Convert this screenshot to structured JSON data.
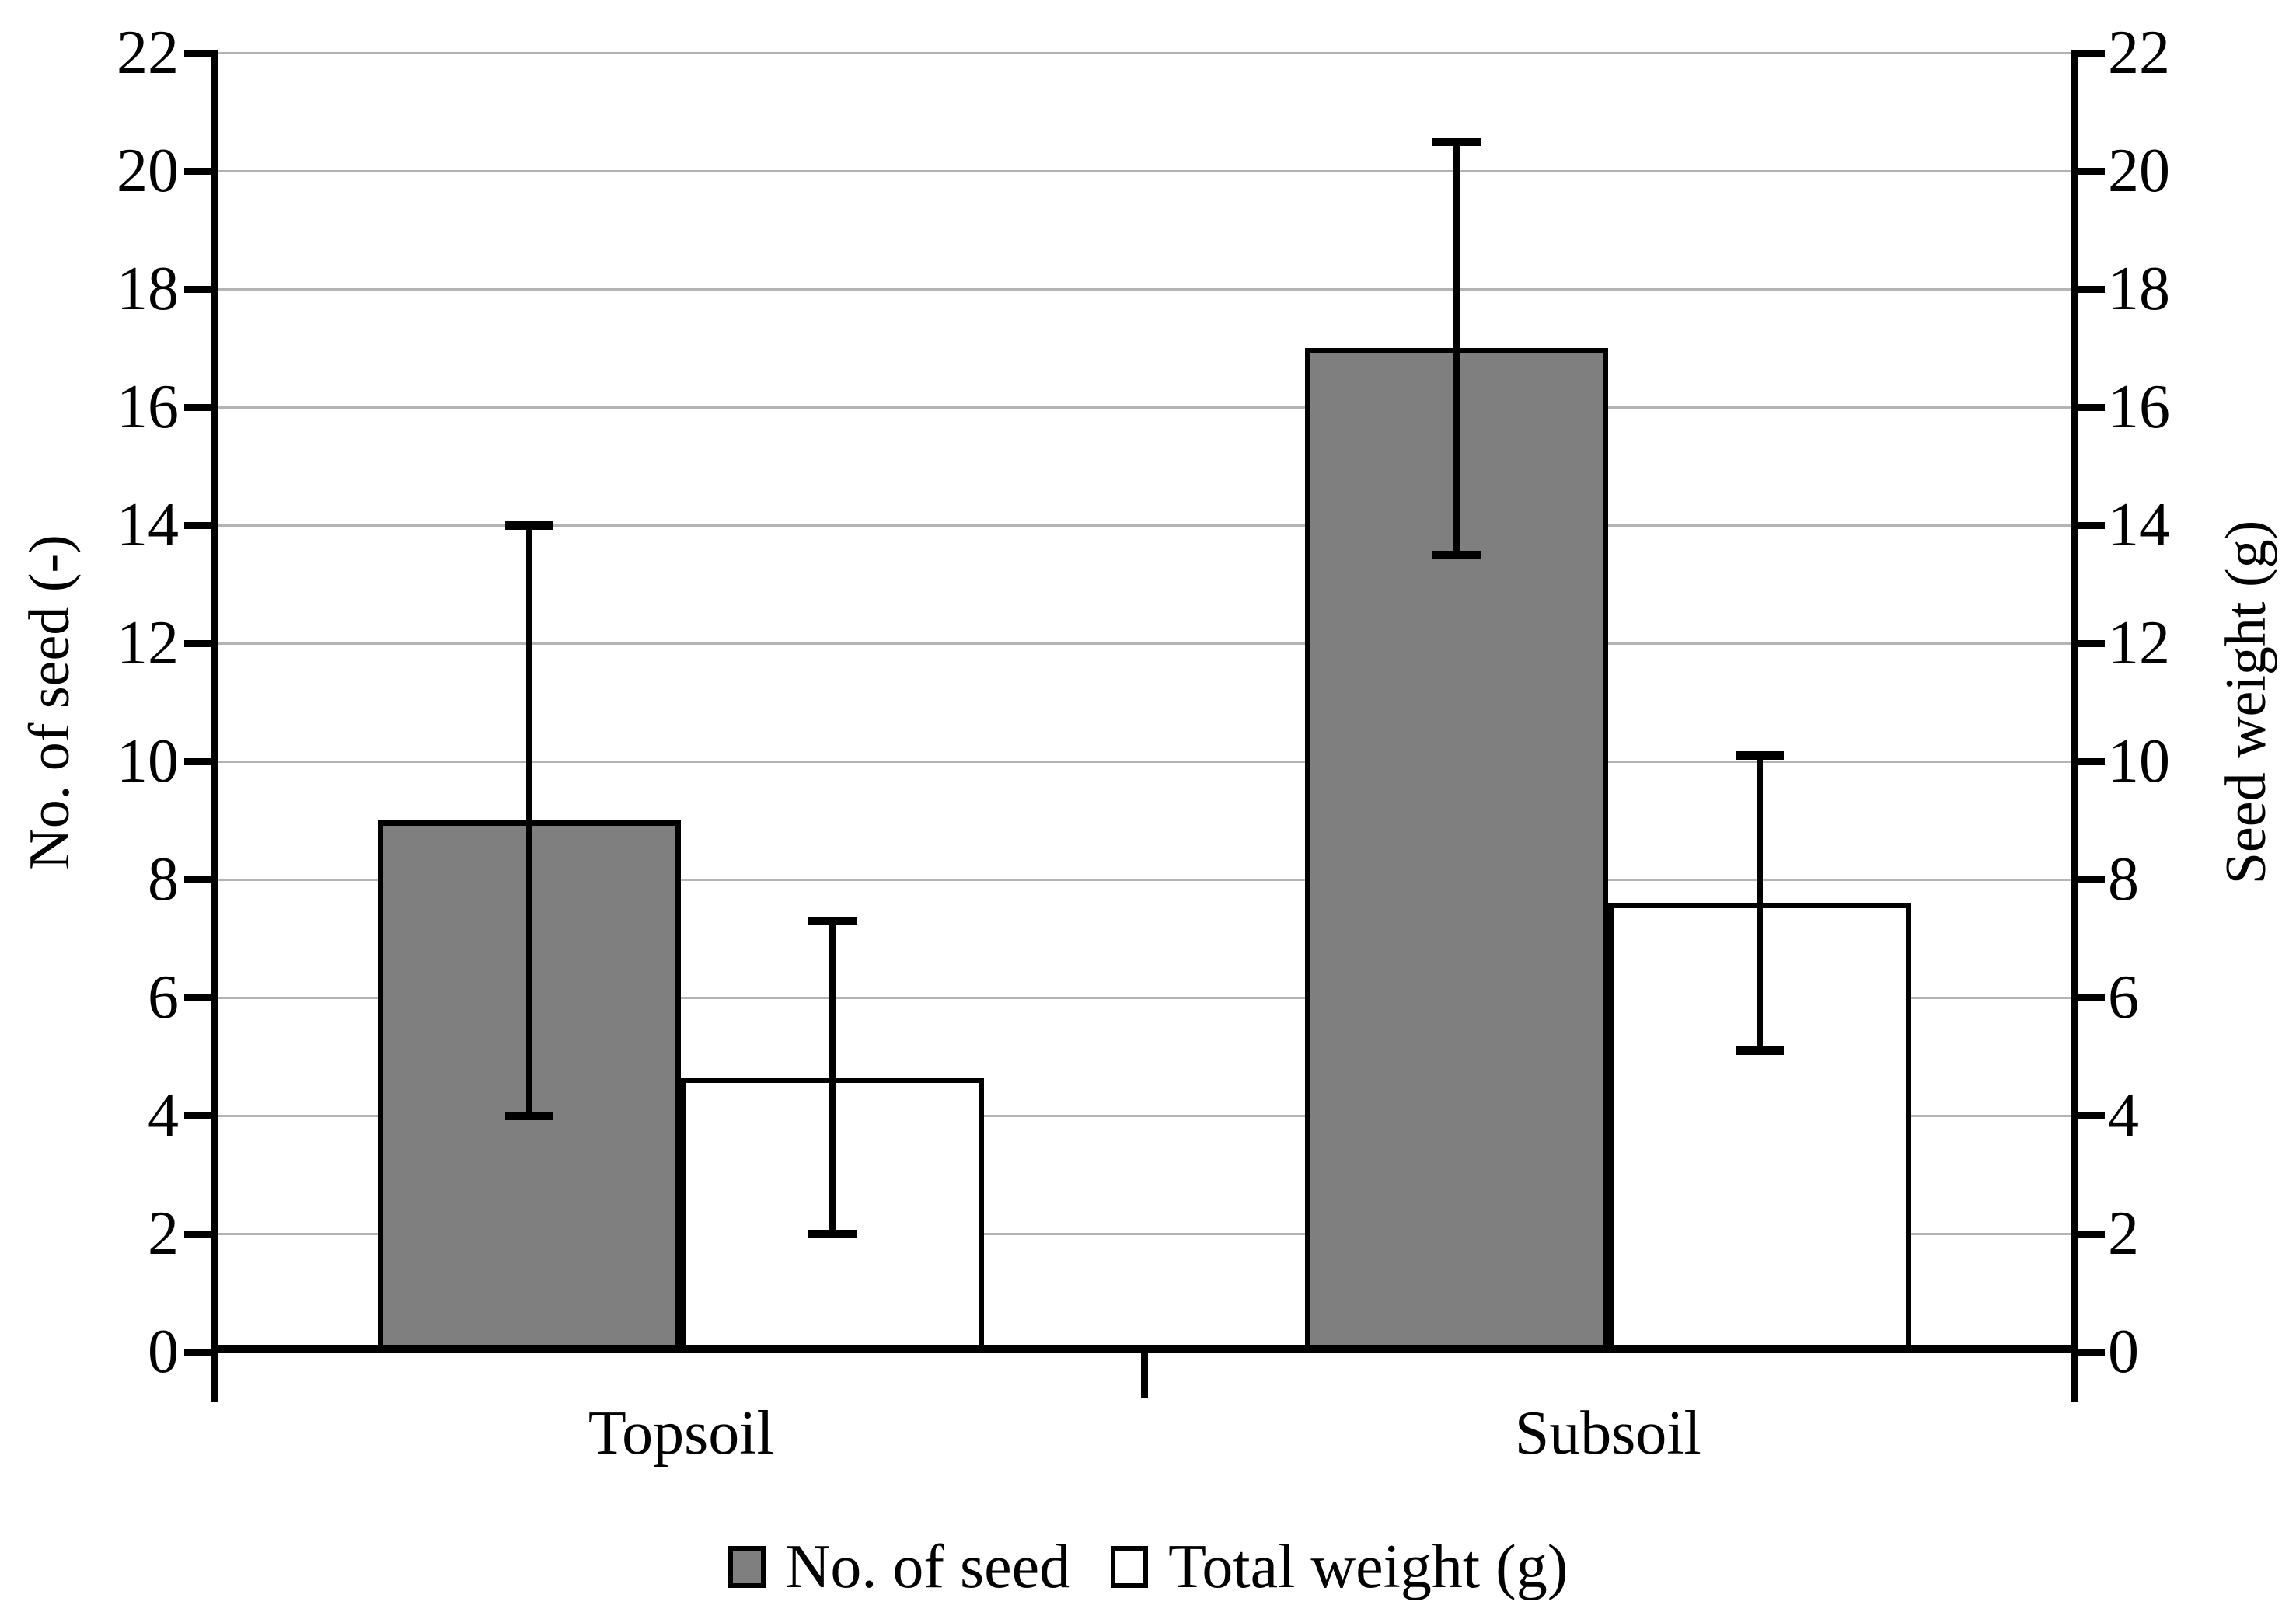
{
  "figure": {
    "background": "#ffffff"
  },
  "chart_data": {
    "type": "bar",
    "categories": [
      "Topsoil",
      "Subsoil"
    ],
    "series": [
      {
        "name": "No. of seed",
        "axis": "left",
        "color": "#7f7f7f",
        "border_color": "#000000",
        "values": [
          9,
          17
        ],
        "error_low": [
          4.0,
          13.5
        ],
        "error_high": [
          14.0,
          20.5
        ]
      },
      {
        "name": "Total weight (g)",
        "axis": "right",
        "color": "#ffffff",
        "border_color": "#000000",
        "values": [
          4.65,
          7.6
        ],
        "error_low": [
          2.0,
          5.1
        ],
        "error_high": [
          7.3,
          10.1
        ]
      }
    ],
    "left_axis": {
      "title": "No. of seed (-)",
      "ticks": [
        0,
        2,
        4,
        6,
        8,
        10,
        12,
        14,
        16,
        18,
        20,
        22
      ]
    },
    "right_axis": {
      "title": "Seed weight (g)",
      "ticks": [
        0,
        2,
        4,
        6,
        8,
        10,
        12,
        14,
        16,
        18,
        20,
        22
      ]
    },
    "ylim": [
      0,
      22
    ],
    "grid": true,
    "gridline_color": "#b3b3b3",
    "axis_color": "#000000",
    "legend_position": "bottom"
  }
}
